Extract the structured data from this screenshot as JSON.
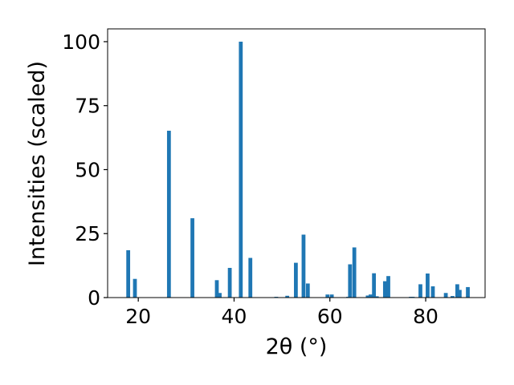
{
  "chart_data": {
    "type": "bar",
    "title": "",
    "xlabel": "2θ (°)",
    "ylabel": "Intensities (scaled)",
    "xlim": [
      13.6,
      92.4
    ],
    "ylim": [
      0,
      105
    ],
    "xticks": [
      20,
      40,
      60,
      80
    ],
    "yticks": [
      0,
      25,
      50,
      75,
      100
    ],
    "grid": false,
    "bar_width": 0.8,
    "color": "#1f77b4",
    "x": [
      17.9,
      19.3,
      26.4,
      31.3,
      36.4,
      37.0,
      39.1,
      41.4,
      43.4,
      48.8,
      51.1,
      52.9,
      54.5,
      55.4,
      59.5,
      60.4,
      63.8,
      64.2,
      65.1,
      67.9,
      68.5,
      69.2,
      69.8,
      71.5,
      72.2,
      76.9,
      77.3,
      78.9,
      80.4,
      81.5,
      84.2,
      85.6,
      86.6,
      87.1,
      88.8
    ],
    "values": [
      18.5,
      7.3,
      65.2,
      31.0,
      6.8,
      1.8,
      11.6,
      100.0,
      15.5,
      0.3,
      0.7,
      13.6,
      24.6,
      5.5,
      1.2,
      1.2,
      0.3,
      13.0,
      19.6,
      0.8,
      1.2,
      9.5,
      0.5,
      6.4,
      8.4,
      0.3,
      0.3,
      5.2,
      9.4,
      4.4,
      1.8,
      0.6,
      5.2,
      3.0,
      4.1
    ]
  }
}
